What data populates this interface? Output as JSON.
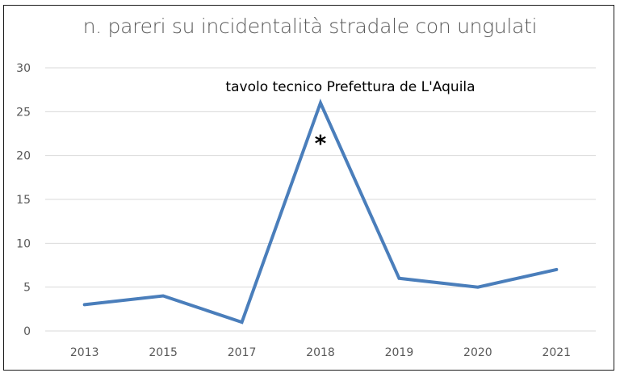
{
  "chart_data": {
    "type": "line",
    "title": "n. pareri su incidentalità stradale con ungulati",
    "xlabel": "",
    "ylabel": "",
    "categories": [
      "2013",
      "2015",
      "2017",
      "2018",
      "2019",
      "2020",
      "2021"
    ],
    "series": [
      {
        "name": "n. pareri",
        "values": [
          3,
          4,
          1,
          26,
          6,
          5,
          7
        ],
        "color": "#4a7ebb"
      }
    ],
    "ylim": [
      0,
      30
    ],
    "yticks": [
      "0",
      "5",
      "10",
      "15",
      "20",
      "25",
      "30"
    ],
    "grid": true,
    "legend": "none",
    "annotations": [
      {
        "text": "tavolo tecnico Prefettura de L'Aquila",
        "x": "2018"
      },
      {
        "text": "*",
        "x": "2018"
      }
    ]
  }
}
